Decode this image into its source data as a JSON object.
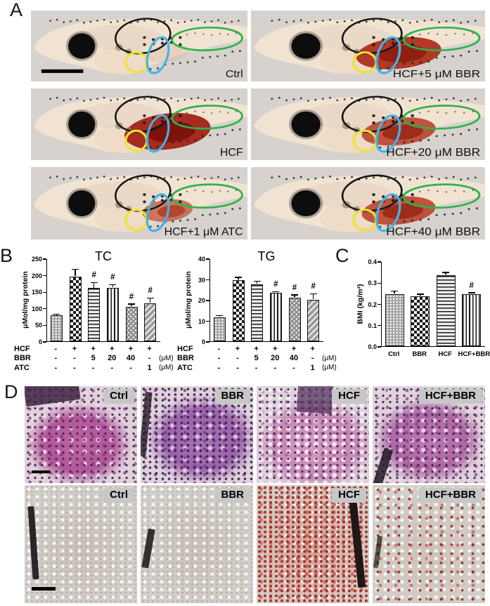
{
  "panels": {
    "a": "A",
    "b": "B",
    "c": "C",
    "d": "D"
  },
  "panelA": {
    "images": [
      {
        "label": "Ctrl",
        "stain_level": "none",
        "scale_bar": true
      },
      {
        "label": "HCF+5 μM BBR",
        "stain_level": "strong",
        "scale_bar": false
      },
      {
        "label": "HCF",
        "stain_level": "severe",
        "scale_bar": false
      },
      {
        "label": "HCF+20 μM BBR",
        "stain_level": "moderate",
        "scale_bar": false
      },
      {
        "label": "HCF+1 μM ATC",
        "stain_level": "mild",
        "scale_bar": false
      },
      {
        "label": "HCF+40 μM BBR",
        "stain_level": "moderate",
        "scale_bar": false
      }
    ],
    "annotation_colors": {
      "brain_ellipse": "#161616",
      "heart_circle": "#f1e232",
      "liver_ellipse": "#45b2e5",
      "trunk_ellipse": "#2fb24c"
    }
  },
  "chart_data": [
    {
      "id": "tc",
      "type": "bar",
      "title": "TC",
      "ylabel": "μMol/mg protein",
      "ylim": [
        0,
        250
      ],
      "yticks": [
        0,
        50,
        100,
        150,
        200,
        250
      ],
      "ytick_labels": [
        "0",
        "50",
        "100",
        "150",
        "200",
        "250"
      ],
      "values": [
        78,
        196,
        160,
        162,
        104,
        115
      ],
      "errors": [
        4,
        22,
        17,
        9,
        9,
        16
      ],
      "sig": [
        "",
        "",
        "#",
        "#",
        "#",
        "#"
      ],
      "patterns": [
        "dots",
        "checker",
        "hlines",
        "vlines",
        "diagdots",
        "diaglines"
      ],
      "treatments": {
        "rows": [
          {
            "label": "HCF",
            "cells": [
              "-",
              "+",
              "+",
              "+",
              "+",
              "+"
            ],
            "unit": ""
          },
          {
            "label": "BBR",
            "cells": [
              "-",
              "-",
              "5",
              "20",
              "40",
              "-"
            ],
            "unit": "(μM)"
          },
          {
            "label": "ATC",
            "cells": [
              "-",
              "-",
              "-",
              "-",
              "-",
              "1"
            ],
            "unit": "(μM)"
          }
        ]
      }
    },
    {
      "id": "tg",
      "type": "bar",
      "title": "TG",
      "ylabel": "μMol/mg protein",
      "ylim": [
        0,
        40
      ],
      "yticks": [
        0,
        10,
        20,
        30,
        40
      ],
      "ytick_labels": [
        "0",
        "10",
        "20",
        "30",
        "40"
      ],
      "values": [
        11.5,
        29.5,
        27.5,
        23.5,
        21,
        20
      ],
      "errors": [
        1,
        1.5,
        1.5,
        0.5,
        1.5,
        3
      ],
      "sig": [
        "",
        "",
        "",
        "#",
        "#",
        "#"
      ],
      "patterns": [
        "dots",
        "checker",
        "hlines",
        "vlines",
        "diagdots",
        "diaglines"
      ],
      "treatments": {
        "rows": [
          {
            "label": "HCF",
            "cells": [
              "-",
              "+",
              "+",
              "+",
              "+",
              "+"
            ],
            "unit": ""
          },
          {
            "label": "BBR",
            "cells": [
              "-",
              "-",
              "5",
              "20",
              "40",
              "-"
            ],
            "unit": "(μM)"
          },
          {
            "label": "ATC",
            "cells": [
              "-",
              "-",
              "-",
              "-",
              "-",
              "1"
            ],
            "unit": "(μM)"
          }
        ]
      }
    },
    {
      "id": "bmi",
      "type": "bar",
      "title": "",
      "ylabel": "BMI (kg/m²)",
      "categories": [
        "Ctrl",
        "BBR",
        "HCF",
        "HCF+BBR"
      ],
      "ylim": [
        0,
        0.4
      ],
      "yticks": [
        0,
        0.1,
        0.2,
        0.3,
        0.4
      ],
      "ytick_labels": [
        "0.0",
        "0.1",
        "0.2",
        "0.3",
        "0.4"
      ],
      "values": [
        0.245,
        0.235,
        0.335,
        0.245
      ],
      "errors": [
        0.015,
        0.01,
        0.012,
        0.006
      ],
      "sig": [
        "",
        "",
        "",
        "#"
      ],
      "patterns": [
        "dots",
        "checker",
        "hlines",
        "vlines"
      ]
    }
  ],
  "panelD": {
    "rows": [
      {
        "name": "he",
        "images": [
          {
            "label": "Ctrl",
            "scale_bar": true
          },
          {
            "label": "BBR",
            "scale_bar": false
          },
          {
            "label": "HCF",
            "scale_bar": false
          },
          {
            "label": "HCF+BBR",
            "scale_bar": false
          }
        ]
      },
      {
        "name": "oro",
        "images": [
          {
            "label": "Ctrl",
            "scale_bar": true
          },
          {
            "label": "BBR",
            "scale_bar": false
          },
          {
            "label": "HCF",
            "scale_bar": false
          },
          {
            "label": "HCF+BBR",
            "scale_bar": false
          }
        ]
      }
    ]
  }
}
